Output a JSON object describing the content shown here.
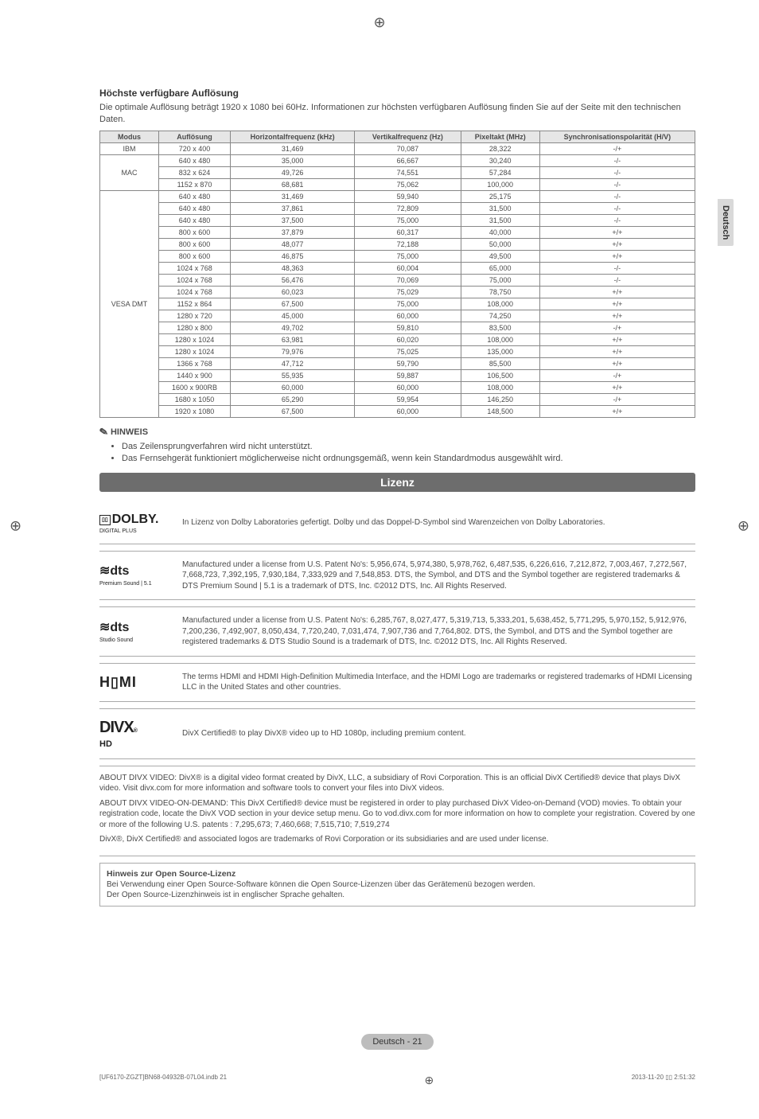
{
  "sideTab": "Deutsch",
  "heading": "Höchste verfügbare Auflösung",
  "intro": "Die optimale Auflösung beträgt 1920 x 1080 bei 60Hz. Informationen zur höchsten verfügbaren Auflösung finden Sie auf der Seite mit den technischen Daten.",
  "table": {
    "headers": [
      "Modus",
      "Auflösung",
      "Horizontalfrequenz (kHz)",
      "Vertikalfrequenz (Hz)",
      "Pixeltakt (MHz)",
      "Synchronisationspolarität (H/V)"
    ],
    "groups": [
      {
        "mode": "IBM",
        "rows": [
          [
            "720 x 400",
            "31,469",
            "70,087",
            "28,322",
            "-/+"
          ]
        ]
      },
      {
        "mode": "MAC",
        "rows": [
          [
            "640 x 480",
            "35,000",
            "66,667",
            "30,240",
            "-/-"
          ],
          [
            "832 x 624",
            "49,726",
            "74,551",
            "57,284",
            "-/-"
          ],
          [
            "1152 x 870",
            "68,681",
            "75,062",
            "100,000",
            "-/-"
          ]
        ]
      },
      {
        "mode": "VESA DMT",
        "rows": [
          [
            "640 x 480",
            "31,469",
            "59,940",
            "25,175",
            "-/-"
          ],
          [
            "640 x 480",
            "37,861",
            "72,809",
            "31,500",
            "-/-"
          ],
          [
            "640 x 480",
            "37,500",
            "75,000",
            "31,500",
            "-/-"
          ],
          [
            "800 x 600",
            "37,879",
            "60,317",
            "40,000",
            "+/+"
          ],
          [
            "800 x 600",
            "48,077",
            "72,188",
            "50,000",
            "+/+"
          ],
          [
            "800 x 600",
            "46,875",
            "75,000",
            "49,500",
            "+/+"
          ],
          [
            "1024 x 768",
            "48,363",
            "60,004",
            "65,000",
            "-/-"
          ],
          [
            "1024 x 768",
            "56,476",
            "70,069",
            "75,000",
            "-/-"
          ],
          [
            "1024 x 768",
            "60,023",
            "75,029",
            "78,750",
            "+/+"
          ],
          [
            "1152 x 864",
            "67,500",
            "75,000",
            "108,000",
            "+/+"
          ],
          [
            "1280 x 720",
            "45,000",
            "60,000",
            "74,250",
            "+/+"
          ],
          [
            "1280 x 800",
            "49,702",
            "59,810",
            "83,500",
            "-/+"
          ],
          [
            "1280 x 1024",
            "63,981",
            "60,020",
            "108,000",
            "+/+"
          ],
          [
            "1280 x 1024",
            "79,976",
            "75,025",
            "135,000",
            "+/+"
          ],
          [
            "1366 x 768",
            "47,712",
            "59,790",
            "85,500",
            "+/+"
          ],
          [
            "1440 x 900",
            "55,935",
            "59,887",
            "106,500",
            "-/+"
          ],
          [
            "1600 x 900RB",
            "60,000",
            "60,000",
            "108,000",
            "+/+"
          ],
          [
            "1680 x 1050",
            "65,290",
            "59,954",
            "146,250",
            "-/+"
          ],
          [
            "1920 x 1080",
            "67,500",
            "60,000",
            "148,500",
            "+/+"
          ]
        ]
      }
    ]
  },
  "noteLabel": "HINWEIS",
  "notes": [
    "Das Zeilensprungverfahren wird nicht unterstützt.",
    "Das Fernsehgerät funktioniert möglicherweise nicht ordnungsgemäß, wenn kein Standardmodus ausgewählt wird."
  ],
  "banner": "Lizenz",
  "licenses": [
    {
      "logoMain": "DOLBY.",
      "logoSub": "DIGITAL PLUS",
      "logoBox": "▯▯",
      "text": "In Lizenz von Dolby Laboratories gefertigt. Dolby und das Doppel-D-Symbol sind Warenzeichen von Dolby Laboratories."
    },
    {
      "logoMain": "dts",
      "logoSub": "Premium Sound | 5.1",
      "logoPrefix": "≋",
      "text": "Manufactured under a license from U.S. Patent No's: 5,956,674, 5,974,380, 5,978,762, 6,487,535, 6,226,616, 7,212,872, 7,003,467, 7,272,567, 7,668,723, 7,392,195, 7,930,184, 7,333,929 and 7,548,853. DTS, the Symbol, and DTS and the Symbol together are registered trademarks & DTS Premium Sound | 5.1 is a trademark of DTS, Inc. ©2012 DTS, Inc. All Rights Reserved."
    },
    {
      "logoMain": "dts",
      "logoSub": "Studio Sound",
      "logoPrefix": "≋",
      "text": "Manufactured under a license from U.S. Patent No's: 6,285,767, 8,027,477, 5,319,713, 5,333,201, 5,638,452, 5,771,295, 5,970,152, 5,912,976, 7,200,236, 7,492,907, 8,050,434, 7,720,240, 7,031,474, 7,907,736 and 7,764,802. DTS, the Symbol, and DTS and the Symbol together are registered trademarks & DTS Studio Sound is a trademark of DTS, Inc. ©2012 DTS, Inc. All Rights Reserved."
    },
    {
      "logoMain": "HDMI",
      "logoStyle": "hdmi",
      "text": "The terms HDMI and HDMI High-Definition Multimedia Interface, and the HDMI Logo are trademarks or registered trademarks of HDMI Licensing LLC in the United States and other countries."
    },
    {
      "logoMain": "DIVX",
      "logoSub": "HD",
      "logoStyle": "divx",
      "text": "DivX Certified® to play DivX® video up to HD 1080p, including premium content."
    }
  ],
  "about": [
    "ABOUT DIVX VIDEO: DivX® is a digital video format created by DivX, LLC, a subsidiary of Rovi Corporation. This is an official DivX Certified® device that plays DivX video. Visit divx.com for more information and software tools to convert your files into DivX videos.",
    "ABOUT DIVX VIDEO-ON-DEMAND: This DivX Certified® device must be registered in order to play purchased DivX Video-on-Demand (VOD) movies. To obtain your registration code, locate the DivX VOD section in your device setup menu. Go to vod.divx.com for more information on how to complete your registration. Covered by one or more of the following U.S. patents : 7,295,673; 7,460,668; 7,515,710; 7,519,274",
    "DivX®, DivX Certified® and associated logos are trademarks of Rovi Corporation or its subsidiaries and are used under license."
  ],
  "os": {
    "title": "Hinweis zur Open Source-Lizenz",
    "lines": [
      "Bei Verwendung einer Open Source-Software können die Open Source-Lizenzen über das Gerätemenü bezogen werden.",
      "Der Open Source-Lizenzhinweis ist in englischer Sprache gehalten."
    ]
  },
  "footerBadge": "Deutsch - 21",
  "bottomLeft": "[UF6170-ZGZT]BN68-04932B-07L04.indb   21",
  "bottomRight": "2013-11-20   ▯▯ 2:51:32"
}
